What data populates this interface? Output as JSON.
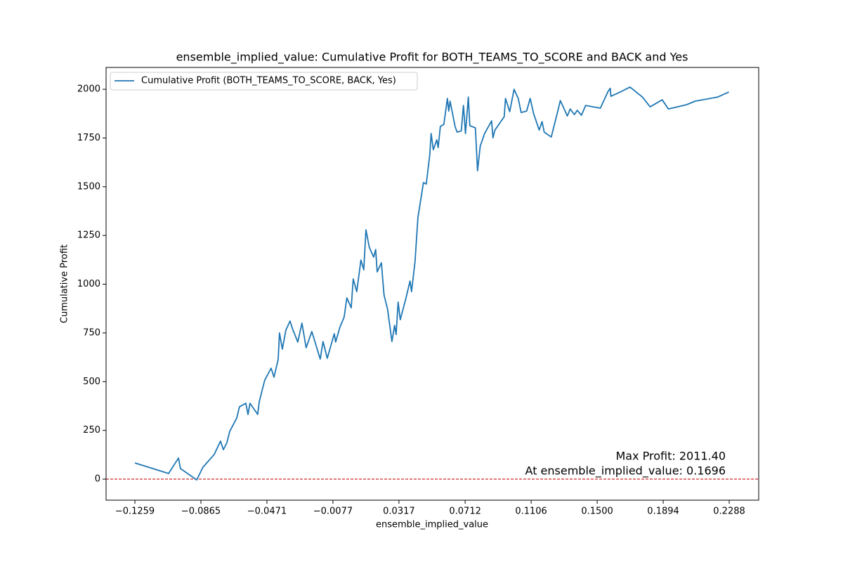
{
  "chart_data": {
    "type": "line",
    "title": "ensemble_implied_value: Cumulative Profit for BOTH_TEAMS_TO_SCORE and BACK and Yes",
    "x_label": "ensemble_implied_value",
    "y_label": "Cumulative Profit",
    "annotations": [
      "Max Profit: 2011.40",
      "At ensemble_implied_value: 0.1696"
    ],
    "hline": {
      "value": 0,
      "color": "#d62728"
    },
    "legend": "upper left",
    "xlim": [
      -0.1431,
      0.2464
    ],
    "ylim": [
      -108,
      2112
    ],
    "xticks": [
      {
        "value": -0.1259,
        "label": "−0.1259"
      },
      {
        "value": -0.0865,
        "label": "−0.0865"
      },
      {
        "value": -0.0471,
        "label": "−0.0471"
      },
      {
        "value": -0.0077,
        "label": "−0.0077"
      },
      {
        "value": 0.0317,
        "label": "0.0317"
      },
      {
        "value": 0.0712,
        "label": "0.0712"
      },
      {
        "value": 0.1106,
        "label": "0.1106"
      },
      {
        "value": 0.15,
        "label": "0.1500"
      },
      {
        "value": 0.1894,
        "label": "0.1894"
      },
      {
        "value": 0.2288,
        "label": "0.2288"
      }
    ],
    "yticks": [
      0,
      250,
      500,
      750,
      1000,
      1250,
      1500,
      1750,
      2000
    ],
    "x": [
      -0.1259,
      -0.1058,
      -0.0999,
      -0.0987,
      -0.089,
      -0.0853,
      -0.0786,
      -0.0748,
      -0.0731,
      -0.071,
      -0.0693,
      -0.0651,
      -0.0635,
      -0.0597,
      -0.0584,
      -0.0572,
      -0.0526,
      -0.0517,
      -0.0496,
      -0.0484,
      -0.0446,
      -0.0429,
      -0.0404,
      -0.0396,
      -0.0379,
      -0.0358,
      -0.0333,
      -0.032,
      -0.0287,
      -0.0262,
      -0.0237,
      -0.0203,
      -0.0153,
      -0.0136,
      -0.0111,
      -0.0069,
      -0.0061,
      -0.0036,
      -0.001,
      0.0006,
      0.0032,
      0.0044,
      0.0065,
      0.009,
      0.0107,
      0.012,
      0.014,
      0.0166,
      0.0178,
      0.0187,
      0.0212,
      0.0228,
      0.0249,
      0.0275,
      0.0291,
      0.03,
      0.0312,
      0.0325,
      0.0358,
      0.0383,
      0.0392,
      0.0413,
      0.043,
      0.0446,
      0.0463,
      0.048,
      0.0501,
      0.0509,
      0.0522,
      0.0543,
      0.0551,
      0.0564,
      0.0585,
      0.0606,
      0.0614,
      0.0622,
      0.0652,
      0.0664,
      0.0689,
      0.0702,
      0.0714,
      0.0731,
      0.074,
      0.0773,
      0.0786,
      0.0802,
      0.0828,
      0.087,
      0.0878,
      0.089,
      0.0928,
      0.0945,
      0.0953,
      0.0978,
      0.1004,
      0.1029,
      0.1046,
      0.1079,
      0.11,
      0.1121,
      0.1154,
      0.1171,
      0.1184,
      0.1226,
      0.1268,
      0.128,
      0.1322,
      0.1339,
      0.1364,
      0.1381,
      0.1406,
      0.1431,
      0.1519,
      0.1565,
      0.1578,
      0.1582,
      0.1645,
      0.1696,
      0.177,
      0.1816,
      0.1888,
      0.1925,
      0.2034,
      0.2085,
      0.2219,
      0.2286
    ],
    "series": [
      {
        "name": "Cumulative Profit (BOTH_TEAMS_TO_SCORE, BACK, Yes)",
        "color": "#1f77b4",
        "values": [
          83,
          29,
          108,
          54,
          -4,
          61,
          126,
          195,
          151,
          187,
          245,
          314,
          371,
          389,
          332,
          389,
          332,
          396,
          468,
          508,
          569,
          523,
          613,
          750,
          667,
          764,
          811,
          775,
          703,
          800,
          674,
          757,
          616,
          706,
          620,
          746,
          703,
          778,
          832,
          930,
          879,
          1027,
          962,
          1124,
          1074,
          1279,
          1189,
          1139,
          1178,
          1063,
          1110,
          944,
          872,
          706,
          789,
          742,
          908,
          818,
          926,
          1016,
          962,
          1117,
          1341,
          1427,
          1521,
          1514,
          1665,
          1773,
          1690,
          1741,
          1701,
          1809,
          1820,
          1953,
          1888,
          1939,
          1809,
          1780,
          1787,
          1917,
          1773,
          1960,
          1813,
          1802,
          1582,
          1708,
          1773,
          1838,
          1751,
          1791,
          1838,
          1859,
          1953,
          1885,
          2000,
          1953,
          1881,
          1888,
          1953,
          1874,
          1791,
          1834,
          1780,
          1755,
          1899,
          1942,
          1863,
          1899,
          1870,
          1892,
          1867,
          1917,
          1903,
          1989,
          2005,
          1964,
          1989,
          2011.4,
          1960,
          1910,
          1946,
          1899,
          1921,
          1939,
          1960,
          1986
        ]
      }
    ]
  }
}
